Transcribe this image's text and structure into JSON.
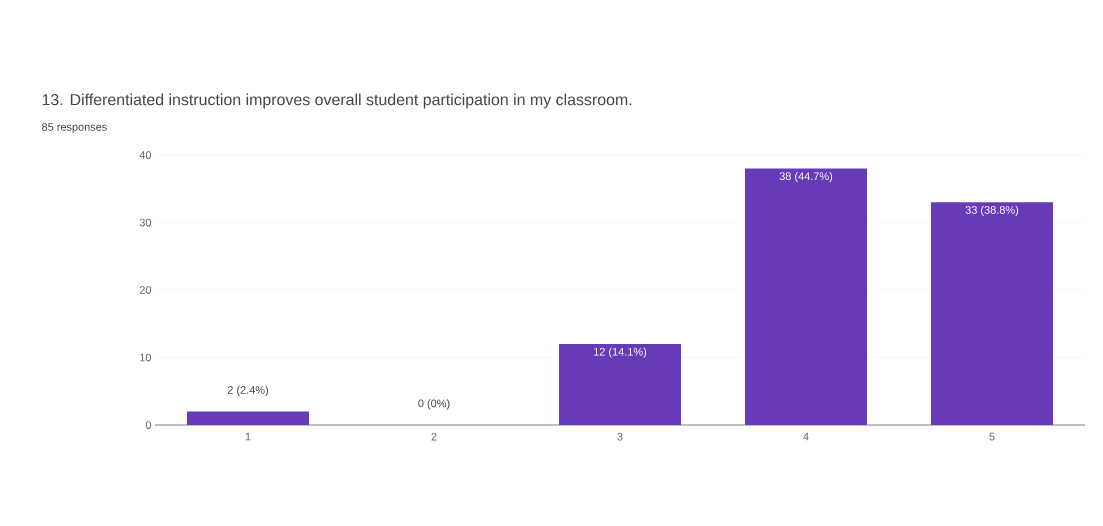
{
  "chart_data": {
    "type": "bar",
    "title": "13. Differentiated instruction improves overall student participation in my classroom.",
    "subtitle": "85 responses",
    "categories": [
      "1",
      "2",
      "3",
      "4",
      "5"
    ],
    "values": [
      2,
      0,
      12,
      38,
      33
    ],
    "value_labels": [
      "2 (2.4%)",
      "0 (0%)",
      "12 (14.1%)",
      "38 (44.7%)",
      "33 (38.8%)"
    ],
    "color": "#673ab7",
    "ylim": [
      0,
      40
    ],
    "yticks": [
      0,
      10,
      20,
      30,
      40
    ],
    "grid": "y"
  }
}
